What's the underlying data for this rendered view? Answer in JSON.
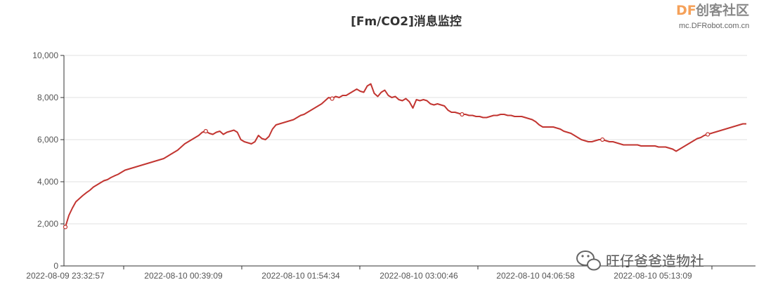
{
  "chart_data": {
    "type": "line",
    "title": "[Fm/CO2]消息监控",
    "xlabel": "",
    "ylabel": "",
    "ylim": [
      0,
      10000
    ],
    "yticks": [
      "0",
      "2,000",
      "4,000",
      "6,000",
      "8,000",
      "10,000"
    ],
    "xticks": [
      "2022-08-09 23:32:57",
      "2022-08-10 00:39:09",
      "2022-08-10 01:54:34",
      "2022-08-10 03:00:46",
      "2022-08-10 04:06:58",
      "2022-08-10 05:13:09"
    ],
    "grid": true,
    "legend": "none",
    "series_color": "#c23531",
    "values": [
      1850,
      2400,
      2750,
      3050,
      3200,
      3350,
      3480,
      3600,
      3750,
      3850,
      3950,
      4050,
      4100,
      4200,
      4280,
      4350,
      4450,
      4550,
      4600,
      4650,
      4700,
      4750,
      4800,
      4850,
      4900,
      4950,
      5000,
      5050,
      5100,
      5200,
      5300,
      5400,
      5500,
      5650,
      5800,
      5900,
      6000,
      6100,
      6200,
      6350,
      6400,
      6300,
      6250,
      6350,
      6400,
      6250,
      6350,
      6400,
      6450,
      6350,
      6000,
      5900,
      5850,
      5800,
      5900,
      6200,
      6050,
      6000,
      6150,
      6500,
      6700,
      6750,
      6800,
      6850,
      6900,
      6950,
      7050,
      7150,
      7200,
      7300,
      7400,
      7500,
      7600,
      7700,
      7850,
      8000,
      7950,
      8050,
      8000,
      8100,
      8100,
      8200,
      8300,
      8400,
      8300,
      8250,
      8550,
      8650,
      8200,
      8050,
      8250,
      8350,
      8100,
      8000,
      8050,
      7900,
      7850,
      7950,
      7800,
      7500,
      7900,
      7850,
      7900,
      7850,
      7700,
      7650,
      7700,
      7650,
      7600,
      7400,
      7300,
      7300,
      7250,
      7200,
      7200,
      7150,
      7150,
      7100,
      7100,
      7050,
      7050,
      7100,
      7150,
      7150,
      7200,
      7200,
      7150,
      7150,
      7100,
      7100,
      7100,
      7050,
      7000,
      6950,
      6850,
      6700,
      6600,
      6600,
      6600,
      6600,
      6550,
      6500,
      6400,
      6350,
      6300,
      6200,
      6100,
      6000,
      5950,
      5900,
      5900,
      5950,
      6000,
      6000,
      5950,
      5900,
      5900,
      5850,
      5800,
      5750,
      5750,
      5750,
      5750,
      5750,
      5700,
      5700,
      5700,
      5700,
      5700,
      5650,
      5650,
      5650,
      5600,
      5550,
      5450,
      5550,
      5650,
      5750,
      5850,
      5950,
      6050,
      6100,
      6200,
      6250,
      6300,
      6350,
      6400,
      6450,
      6500,
      6550,
      6600,
      6650,
      6700,
      6750,
      6750
    ],
    "markers": [
      0,
      40,
      76,
      113,
      153,
      183
    ]
  },
  "watermark": {
    "logo_df": "DF",
    "logo_cn": "创客社区",
    "logo_url": "mc.DFRobot.com.cn",
    "account": "旺仔爸爸造物社"
  }
}
